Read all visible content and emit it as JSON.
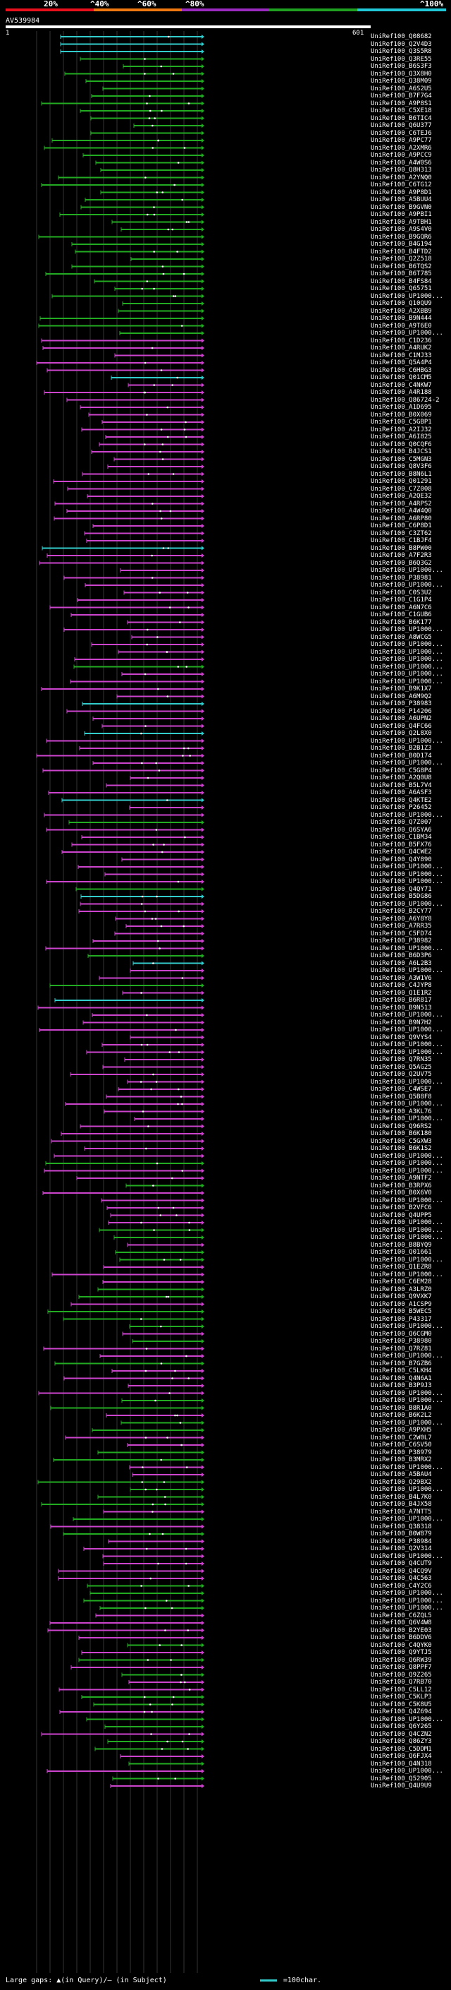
{
  "scale": {
    "labels": [
      "20%",
      "^40%",
      "^60%",
      "^80%",
      "^100%"
    ],
    "colors": [
      "#e8101c",
      "#f07810",
      "#9a2ac0",
      "#20a020",
      "#20c8d8"
    ]
  },
  "query": {
    "id": "AV539984",
    "start": "1",
    "end": "601"
  },
  "hits": [
    "UniRef100_Q08682",
    "UniRef100_Q2V4D3",
    "UniRef100_Q3S5R8",
    "UniRef100_Q3RE55",
    "UniRef100_B6S3F3",
    "UniRef100_Q3X8H0",
    "UniRef100_Q38M09",
    "UniRef100_A6S2U5",
    "UniRef100_B7F7G4",
    "UniRef100_A9P8S1",
    "UniRef100_C5XE18",
    "UniRef100_B6TIC4",
    "UniRef100_Q6U377",
    "UniRef100_C6TEJ6",
    "UniRef100_A9PC77",
    "UniRef100_A2XMR6",
    "UniRef100_A9PCC9",
    "UniRef100_A4W0S6",
    "UniRef100_Q8H313",
    "UniRef100_A2YNQ0",
    "UniRef100_C6TG12",
    "UniRef100_A9P8D1",
    "UniRef100_A5BUU4",
    "UniRef100_B9GVN0",
    "UniRef100_A9PBI1",
    "UniRef100_A9TBH1",
    "UniRef100_A9S4V0",
    "UniRef100_B9GQR6",
    "UniRef100_B4G194",
    "UniRef100_B4FTD2",
    "UniRef100_Q2Z518",
    "UniRef100_B6TQS2",
    "UniRef100_B6T785",
    "UniRef100_B4FS84",
    "UniRef100_Q65751",
    "UniRef100_UP1000...",
    "UniRef100_Q10QU9",
    "UniRef100_A2XBB9",
    "UniRef100_B9N444",
    "UniRef100_A9T6E0",
    "UniRef100_UP1000...",
    "UniRef100_C1D236",
    "UniRef100_A4RUK2",
    "UniRef100_C1MJ33",
    "UniRef100_Q5A4P4",
    "UniRef100_C6HBG3",
    "UniRef100_Q01CM5",
    "UniRef100_C4NKW7",
    "UniRef100_A4R188",
    "UniRef100_Q86724-2",
    "UniRef100_A1D695",
    "UniRef100_B0X069",
    "UniRef100_C5GBP1",
    "UniRef100_A2IJ32",
    "UniRef100_A6I825",
    "UniRef100_Q0CQF6",
    "UniRef100_B4JCS1",
    "UniRef100_C5MGN3",
    "UniRef100_Q8V3F6",
    "UniRef100_B8N6L1",
    "UniRef100_Q01291",
    "UniRef100_C7Z008",
    "UniRef100_A2QE32",
    "UniRef100_A4RPS2",
    "UniRef100_A4W4Q0",
    "UniRef100_A6RP80",
    "UniRef100_C6P8D1",
    "UniRef100_C3ZT62",
    "UniRef100_C1BJF4",
    "UniRef100_B8PW00",
    "UniRef100_A7F2R3",
    "UniRef100_B6Q3G2",
    "UniRef100_UP1000...",
    "UniRef100_P38981",
    "UniRef100_UP1000...",
    "UniRef100_C0S3U2",
    "UniRef100_C1G1P4",
    "UniRef100_A6N7C6",
    "UniRef100_C1GUB6",
    "UniRef100_B6K177",
    "UniRef100_UP1000...",
    "UniRef100_A8WCG5",
    "UniRef100_UP1000...",
    "UniRef100_UP1000...",
    "UniRef100_UP1000...",
    "UniRef100_UP1000...",
    "UniRef100_UP1000...",
    "UniRef100_UP1000...",
    "UniRef100_B9K1X7",
    "UniRef100_A6M9Q2",
    "UniRef100_P38983",
    "UniRef100_P14206",
    "UniRef100_A6UPN2",
    "UniRef100_Q4FC66",
    "UniRef100_Q2L8X0",
    "UniRef100_UP1000...",
    "UniRef100_B2B1Z3",
    "UniRef100_B0D174",
    "UniRef100_UP1000...",
    "UniRef100_C5G8P4",
    "UniRef100_A2Q0U8",
    "UniRef100_B5L7V4",
    "UniRef100_A6ASF3",
    "UniRef100_Q4KTE2",
    "UniRef100_P26452",
    "UniRef100_UP1000...",
    "UniRef100_Q7Z007",
    "UniRef100_Q6SYA6",
    "UniRef100_C1BM34",
    "UniRef100_B5FX76",
    "UniRef100_Q4CWE2",
    "UniRef100_Q4Y890",
    "UniRef100_UP1000...",
    "UniRef100_UP1000...",
    "UniRef100_UP1000...",
    "UniRef100_Q4QY71",
    "UniRef100_B5DG86",
    "UniRef100_UP1000...",
    "UniRef100_B2CY77",
    "UniRef100_A6Y8Y8",
    "UniRef100_A7RR35",
    "UniRef100_C5FD74",
    "UniRef100_P38982",
    "UniRef100_UP1000...",
    "UniRef100_B6D3P6",
    "UniRef100_A6L2B3",
    "UniRef100_UP1000...",
    "UniRef100_A3W1V6",
    "UniRef100_C4JYP8",
    "UniRef100_Q1E1R2",
    "UniRef100_B6R817",
    "UniRef100_B9N513",
    "UniRef100_UP1000...",
    "UniRef100_B9N7H2",
    "UniRef100_UP1000...",
    "UniRef100_Q9VYS4",
    "UniRef100_UP1000...",
    "UniRef100_UP1000...",
    "UniRef100_Q7RN35",
    "UniRef100_Q5AG25",
    "UniRef100_Q2UV75",
    "UniRef100_UP1000...",
    "UniRef100_C4WSE7",
    "UniRef100_Q5B8F8",
    "UniRef100_UP1000...",
    "UniRef100_A3KL76",
    "UniRef100_UP1000...",
    "UniRef100_Q96RS2",
    "UniRef100_B6K180",
    "UniRef100_C5GXW3",
    "UniRef100_B6K1S2",
    "UniRef100_UP1000...",
    "UniRef100_UP1000...",
    "UniRef100_UP1000...",
    "UniRef100_A9NTF2",
    "UniRef100_B3RPX6",
    "UniRef100_B0X6V0",
    "UniRef100_UP1000...",
    "UniRef100_B2VFC6",
    "UniRef100_Q4UPP5",
    "UniRef100_UP1000...",
    "UniRef100_UP1000...",
    "UniRef100_UP1000...",
    "UniRef100_B8BYQ9",
    "UniRef100_Q01661",
    "UniRef100_UP1000...",
    "UniRef100_Q1EZR8",
    "UniRef100_UP1000...",
    "UniRef100_C6EM28",
    "UniRef100_A3LRZ0",
    "UniRef100_Q9VXK7",
    "UniRef100_A1CSP9",
    "UniRef100_B5WEC5",
    "UniRef100_P43317",
    "UniRef100_UP1000...",
    "UniRef100_Q6CGM0",
    "UniRef100_P38980",
    "UniRef100_Q7RZ81",
    "UniRef100_UP1000...",
    "UniRef100_B7GZB6",
    "UniRef100_C5LKH4",
    "UniRef100_Q4N6A1",
    "UniRef100_B3P9J3",
    "UniRef100_UP1000...",
    "UniRef100_UP1000...",
    "UniRef100_B8R1A0",
    "UniRef100_B6K2L2",
    "UniRef100_UP1000...",
    "UniRef100_A9PXH5",
    "UniRef100_C2W0L7",
    "UniRef100_C6SV50",
    "UniRef100_P38979",
    "UniRef100_B3MRX2",
    "UniRef100_UP1000...",
    "UniRef100_A5BAU4",
    "UniRef100_Q29BX2",
    "UniRef100_UP1000...",
    "UniRef100_B4L7K0",
    "UniRef100_B4JX58",
    "UniRef100_A7NTT5",
    "UniRef100_UP1000...",
    "UniRef100_Q38318",
    "UniRef100_B0W879",
    "UniRef100_P38984",
    "UniRef100_Q2V314",
    "UniRef100_UP1000...",
    "UniRef100_Q4CUT9",
    "UniRef100_Q4CQ9V",
    "UniRef100_Q4C563",
    "UniRef100_C4Y2C6",
    "UniRef100_UP1000...",
    "UniRef100_UP1000...",
    "UniRef100_UP1000...",
    "UniRef100_C6ZQL5",
    "UniRef100_Q6V4W8",
    "UniRef100_B2YE03",
    "UniRef100_B6DDV6",
    "UniRef100_C4QYK0",
    "UniRef100_Q9YTJ5",
    "UniRef100_Q6RW39",
    "UniRef100_Q8PPF7",
    "UniRef100_Q9Z265",
    "UniRef100_Q7RB70",
    "UniRef100_C5LL12",
    "UniRef100_C5KLP3",
    "UniRef100_C5K8U5",
    "UniRef100_Q4Z694",
    "UniRef100_UP1000...",
    "UniRef100_Q6Y265",
    "UniRef100_Q4CZN2",
    "UniRef100_Q86ZY3",
    "UniRef100_C5DDM1",
    "UniRef100_Q6FJX4",
    "UniRef100_Q4N318",
    "UniRef100_UP1000...",
    "UniRef100_Q52905",
    "UniRef100_Q4U9U9"
  ],
  "legend": {
    "text": "Large gaps: ▲(in Query)/— (in Subject)",
    "sample_text": "=100char."
  }
}
